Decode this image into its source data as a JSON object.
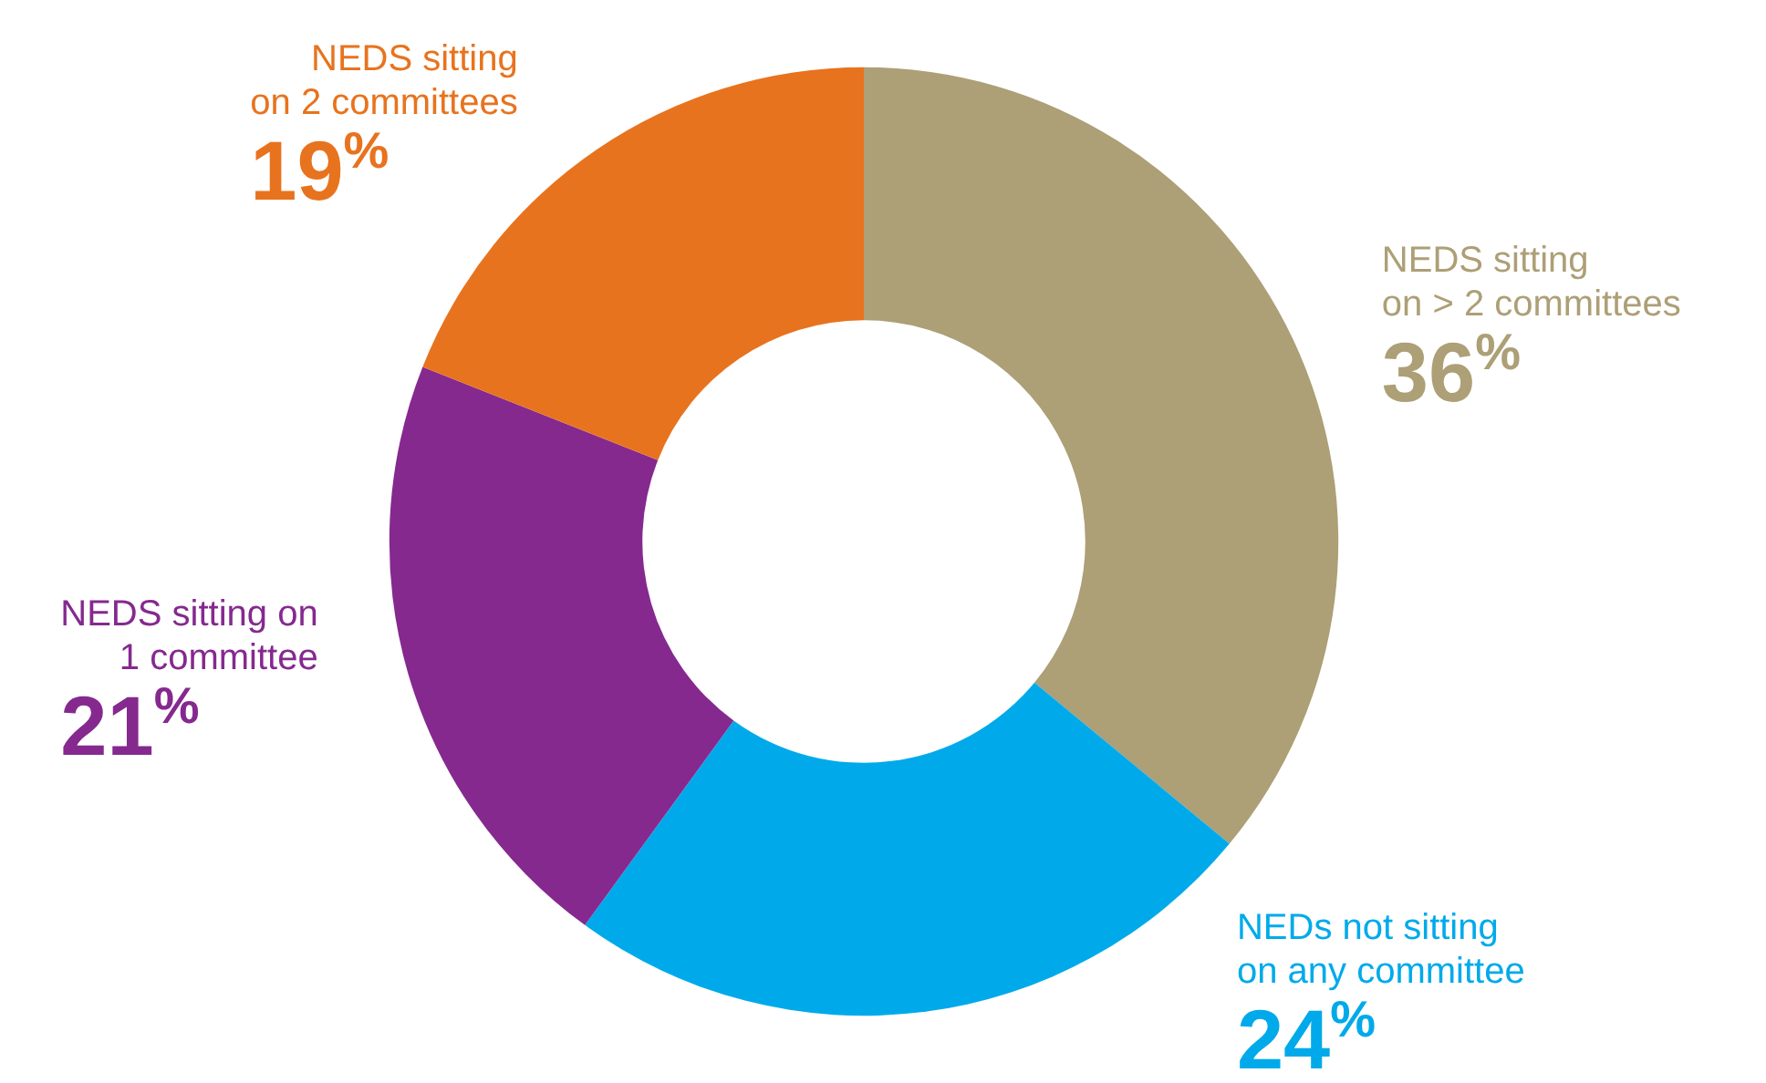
{
  "chart_data": {
    "type": "donut",
    "categories": [
      "NEDS sitting\non > 2 committees",
      "NEDs not sitting\non any committee",
      "NEDS sitting on\n1 committee",
      "NEDS sitting\non 2 committees"
    ],
    "values": [
      36,
      24,
      21,
      19
    ],
    "colors": [
      "#ad9f76",
      "#00aaea",
      "#85298f",
      "#e8731e"
    ],
    "value_labels": [
      "36%",
      "24%",
      "21%",
      "19%"
    ],
    "data_labels": true,
    "legend": false
  }
}
